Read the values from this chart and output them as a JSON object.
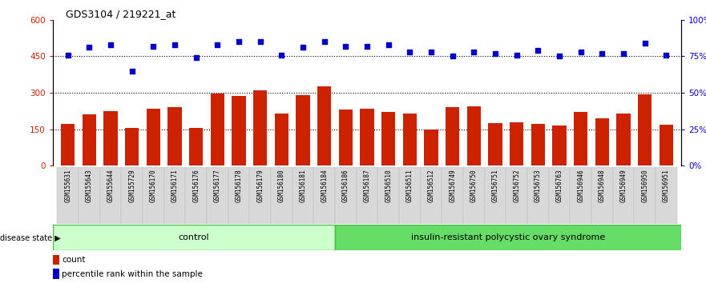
{
  "title": "GDS3104 / 219221_at",
  "samples": [
    "GSM155631",
    "GSM155643",
    "GSM155644",
    "GSM155729",
    "GSM156170",
    "GSM156171",
    "GSM156176",
    "GSM156177",
    "GSM156178",
    "GSM156179",
    "GSM156180",
    "GSM156181",
    "GSM156184",
    "GSM156186",
    "GSM156187",
    "GSM156510",
    "GSM156511",
    "GSM156512",
    "GSM156749",
    "GSM156750",
    "GSM156751",
    "GSM156752",
    "GSM156753",
    "GSM156763",
    "GSM156946",
    "GSM156948",
    "GSM156949",
    "GSM156950",
    "GSM156951"
  ],
  "bar_values": [
    170,
    210,
    225,
    155,
    235,
    240,
    155,
    295,
    285,
    310,
    215,
    290,
    325,
    230,
    235,
    220,
    215,
    148,
    240,
    245,
    175,
    178,
    173,
    165,
    222,
    195,
    215,
    293,
    168
  ],
  "dot_values": [
    76,
    81,
    83,
    65,
    82,
    83,
    74,
    83,
    85,
    85,
    76,
    81,
    85,
    82,
    82,
    83,
    78,
    78,
    75,
    78,
    77,
    76,
    79,
    75,
    78,
    77,
    77,
    84,
    76
  ],
  "control_count": 13,
  "bar_color": "#cc2200",
  "dot_color": "#0000cc",
  "ylim_left": [
    0,
    600
  ],
  "ylim_right": [
    0,
    100
  ],
  "yticks_left": [
    0,
    150,
    300,
    450,
    600
  ],
  "yticks_right": [
    0,
    25,
    50,
    75,
    100
  ],
  "ytick_labels_left": [
    "0",
    "150",
    "300",
    "450",
    "600"
  ],
  "ytick_labels_right": [
    "0%",
    "25%",
    "50%",
    "75%",
    "100%"
  ],
  "control_label": "control",
  "disease_label": "insulin-resistant polycystic ovary syndrome",
  "legend_bar": "count",
  "legend_dot": "percentile rank within the sample",
  "disease_state_label": "disease state",
  "bg_color": "#ffffff",
  "plot_bg_color": "#ffffff",
  "control_fill": "#ccffcc",
  "disease_fill": "#66dd66",
  "xticklabel_bg": "#d8d8d8"
}
